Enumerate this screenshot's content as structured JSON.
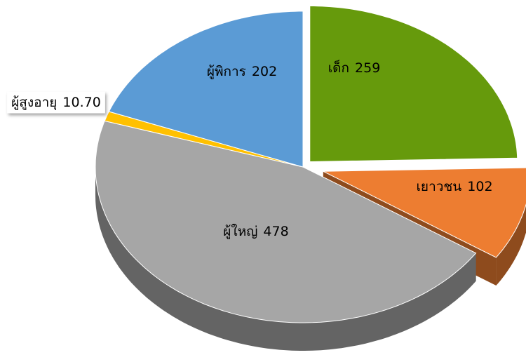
{
  "chart_data": {
    "type": "pie",
    "categories": [
      "เด็ก",
      "เยาวชน",
      "ผู้ใหญ่",
      "ผู้สูงอายุ",
      "ผู้พิการ"
    ],
    "values": [
      259,
      102,
      478,
      10.7,
      202
    ],
    "value_labels": [
      "259",
      "102",
      "478",
      "10.70",
      "202"
    ],
    "colors": [
      "#669a0c",
      "#ed7d31",
      "#a6a6a6",
      "#ffc000",
      "#5b9bd5"
    ]
  }
}
